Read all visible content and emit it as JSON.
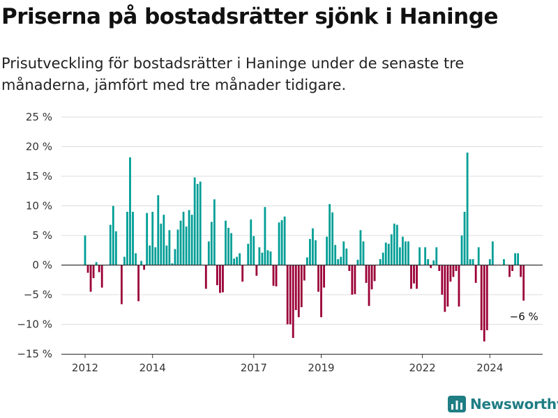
{
  "title": "Priserna på bostadsrätter sjönk i Haninge",
  "subtitle": "Prisutveckling för bostadsrätter i Haninge under de senaste tre månaderna, jämfört med tre månader tidigare.",
  "brand": {
    "name": "Newsworthy",
    "icon": "bar-chart-logo-icon"
  },
  "colors": {
    "positive": "#009e96",
    "negative": "#9b0037",
    "grid": "#dddddd",
    "axis": "#333333",
    "brand": "#1f7d84"
  },
  "chart_data": {
    "type": "bar",
    "x_unit": "month",
    "x_start": "2012-01",
    "ylim": [
      -15,
      25
    ],
    "y_ticks": [
      25,
      20,
      15,
      10,
      5,
      0,
      -5,
      -10,
      -15
    ],
    "y_tick_labels": [
      "25 %",
      "20 %",
      "15 %",
      "10 %",
      "5 %",
      "0 %",
      "−5 %",
      "−10 %",
      "−15 %"
    ],
    "x_ticks": [
      "2012",
      "2014",
      "2017",
      "2019",
      "2022",
      "2024"
    ],
    "grid": true,
    "values": [
      5,
      -1.3,
      -4.5,
      -2.2,
      0.5,
      -1.2,
      -3.8,
      null,
      null,
      6.8,
      10,
      5.7,
      null,
      -6.6,
      1.4,
      9,
      18.2,
      9,
      2,
      -6.1,
      0.7,
      -0.8,
      8.8,
      3.3,
      9,
      3,
      11.8,
      7,
      8.5,
      3.3,
      5.9,
      0.3,
      2.7,
      6,
      7.5,
      9,
      6.5,
      9.3,
      8.5,
      14.8,
      13.7,
      14.1,
      null,
      -4,
      4,
      7.3,
      11.1,
      -3.4,
      -4.7,
      -4.6,
      7.5,
      6.3,
      5.4,
      1.1,
      1.4,
      2,
      -2.8,
      null,
      3.6,
      7.7,
      4.9,
      -1.8,
      3,
      2.1,
      9.8,
      2.5,
      2.3,
      -3.5,
      -3.6,
      7.2,
      7.6,
      8.2,
      -10,
      -10,
      -12.3,
      -7.6,
      -8.8,
      -7.1,
      -2.6,
      1.3,
      4.4,
      6.2,
      4.2,
      -4.5,
      -8.8,
      -3.8,
      4.8,
      10.3,
      8.9,
      3.4,
      1,
      1.4,
      4,
      2.8,
      -1,
      -5,
      -4.9,
      0.9,
      5.9,
      4,
      -3,
      -6.9,
      -4.1,
      -2.7,
      null,
      1,
      2.1,
      3.8,
      3.6,
      5.2,
      7,
      6.8,
      3,
      4.8,
      4,
      4,
      -4,
      -3.1,
      -4,
      3,
      null,
      3,
      1,
      -0.5,
      0.8,
      3,
      -1,
      -5,
      -7.9,
      -7,
      -2.8,
      -2,
      -1,
      -7,
      5,
      9,
      19,
      1,
      1,
      -3,
      3,
      -11,
      -12.9,
      -11,
      1,
      4,
      null,
      null,
      null,
      1,
      null,
      -2,
      -1,
      2,
      2,
      -2,
      -6
    ],
    "annotation": "−6 %"
  }
}
